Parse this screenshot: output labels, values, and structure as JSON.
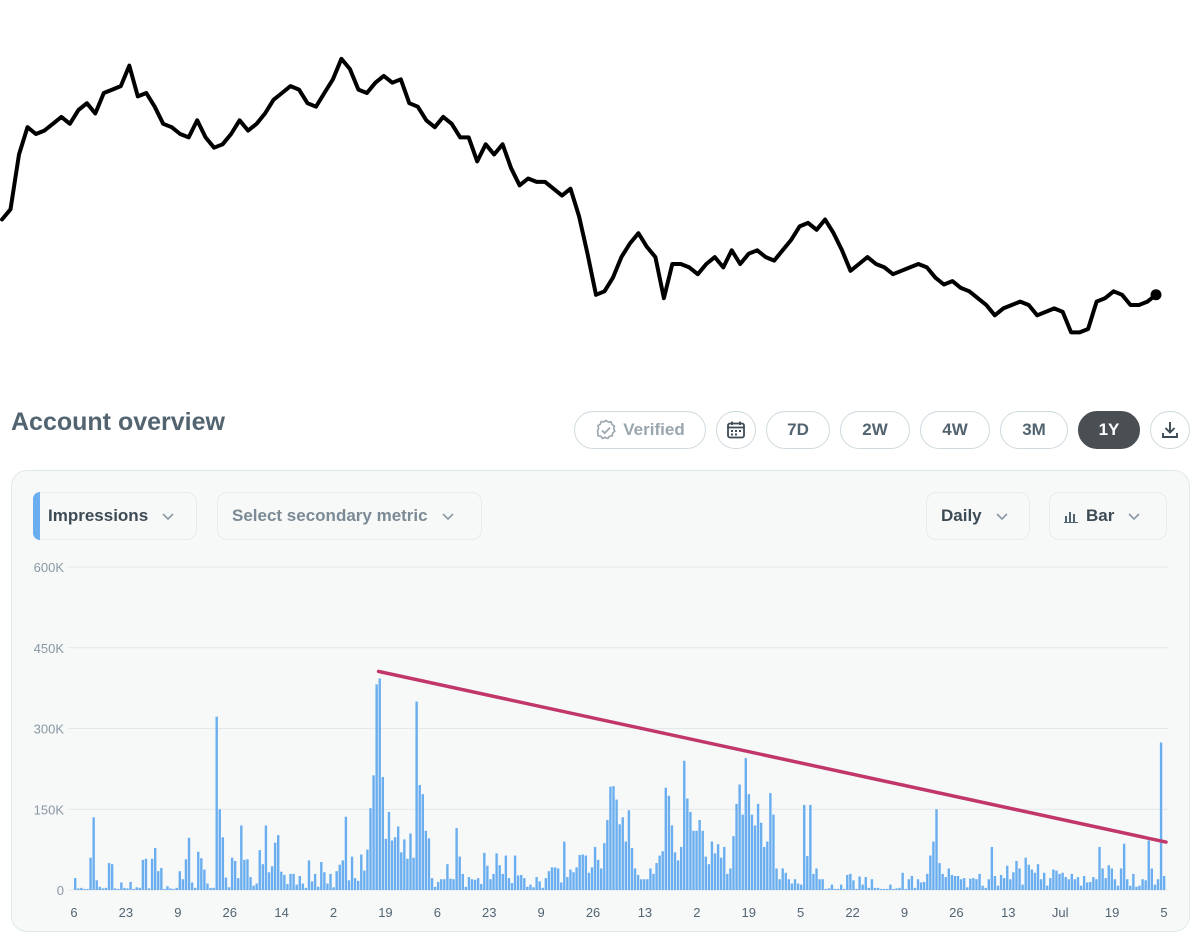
{
  "header": {
    "title": "Account overview"
  },
  "toolbar": {
    "verified_label": "Verified",
    "ranges": [
      "7D",
      "2W",
      "4W",
      "3M",
      "1Y"
    ],
    "active_range": "1Y"
  },
  "controls": {
    "primary_metric": "Impressions",
    "secondary_metric_placeholder": "Select secondary metric",
    "interval": "Daily",
    "chart_type": "Bar"
  },
  "colors": {
    "bar": "#6aaef0",
    "trend": "#c2376a",
    "accent": "#6aaef0",
    "active_pill": "#4a4f54"
  },
  "icons": [
    "verified-check-icon",
    "calendar-icon",
    "download-icon",
    "chevron-down-icon",
    "bar-chart-icon"
  ],
  "chart_data": [
    {
      "type": "line",
      "series": [
        {
          "values": [
            44,
            47,
            63,
            71,
            69,
            70,
            72,
            74,
            72,
            76,
            78,
            75,
            81,
            82,
            83,
            89,
            80,
            81,
            77,
            72,
            71,
            69,
            68,
            73,
            68,
            65,
            66,
            69,
            73,
            70,
            72,
            75,
            79,
            81,
            83,
            82,
            78,
            77,
            81,
            85,
            91,
            88,
            82,
            81,
            84,
            86,
            84,
            85,
            78,
            77,
            73,
            71,
            74,
            72,
            68,
            68,
            61,
            66,
            63,
            66,
            59,
            54,
            56,
            55,
            55,
            53,
            51,
            53,
            45,
            34,
            22,
            23,
            27,
            33,
            37,
            40,
            36,
            33,
            21,
            31,
            31,
            30,
            28,
            31,
            33,
            30,
            35,
            31,
            34,
            35,
            33,
            32,
            35,
            38,
            42,
            43,
            41,
            44,
            40,
            35,
            29,
            31,
            33,
            31,
            30,
            28,
            29,
            30,
            31,
            30,
            27,
            25,
            26,
            24,
            23,
            21,
            19,
            16,
            18,
            19,
            20,
            19,
            16,
            17,
            18,
            17,
            11,
            11,
            12,
            20,
            21,
            23,
            22,
            19,
            19,
            20,
            22
          ]
        }
      ]
    },
    {
      "type": "bar",
      "title": "Impressions",
      "ylim": [
        0,
        600000
      ],
      "y_ticks": [
        "0",
        "150K",
        "300K",
        "450K",
        "600K"
      ],
      "x_tick_labels": [
        "6",
        "23",
        "9",
        "26",
        "14",
        "2",
        "19",
        "6",
        "23",
        "9",
        "26",
        "13",
        "2",
        "19",
        "5",
        "22",
        "9",
        "26",
        "13",
        "Jul",
        "19",
        "5"
      ],
      "values": [
        22000,
        3000,
        4000,
        2000,
        2000,
        60000,
        135000,
        18000,
        6000,
        3000,
        4000,
        50000,
        48000,
        3000,
        2000,
        14000,
        4000,
        3000,
        15000,
        2000,
        5000,
        4000,
        56000,
        58000,
        3000,
        58000,
        78000,
        35000,
        41000,
        2000,
        7000,
        3000,
        2000,
        4000,
        35000,
        20000,
        57000,
        97000,
        14000,
        4000,
        71000,
        59000,
        38000,
        12000,
        4000,
        4000,
        322000,
        150000,
        98000,
        23000,
        5000,
        60000,
        54000,
        22000,
        120000,
        56000,
        57000,
        24000,
        8000,
        12000,
        74000,
        48000,
        120000,
        33000,
        44000,
        88000,
        102000,
        34000,
        28000,
        11000,
        30000,
        30000,
        10000,
        26000,
        12000,
        4000,
        55000,
        16000,
        30000,
        6000,
        52000,
        33000,
        12000,
        30000,
        5000,
        35000,
        47000,
        55000,
        136000,
        18000,
        62000,
        22000,
        17000,
        66000,
        36000,
        75000,
        152000,
        213000,
        382000,
        393000,
        210000,
        95000,
        145000,
        92000,
        98000,
        118000,
        70000,
        94000,
        58000,
        105000,
        60000,
        350000,
        195000,
        178000,
        110000,
        96000,
        22000,
        6000,
        15000,
        20000,
        20000,
        48000,
        21000,
        20000,
        115000,
        62000,
        30000,
        6000,
        24000,
        20000,
        19000,
        22000,
        11000,
        69000,
        45000,
        20000,
        30000,
        68000,
        46000,
        30000,
        64000,
        22000,
        13000,
        64000,
        27000,
        28000,
        22000,
        6000,
        10000,
        5000,
        24000,
        16000,
        4000,
        22000,
        35000,
        42000,
        42000,
        40000,
        14000,
        90000,
        24000,
        38000,
        33000,
        42000,
        65000,
        66000,
        64000,
        32000,
        42000,
        80000,
        56000,
        40000,
        87000,
        130000,
        192000,
        193000,
        168000,
        122000,
        135000,
        90000,
        148000,
        78000,
        40000,
        28000,
        20000,
        20000,
        20000,
        40000,
        30000,
        50000,
        64000,
        72000,
        190000,
        175000,
        120000,
        70000,
        55000,
        80000,
        240000,
        170000,
        145000,
        110000,
        110000,
        130000,
        110000,
        62000,
        48000,
        90000,
        68000,
        85000,
        60000,
        80000,
        30000,
        40000,
        100000,
        160000,
        196000,
        140000,
        245000,
        178000,
        140000,
        120000,
        160000,
        125000,
        80000,
        90000,
        180000,
        140000,
        40000,
        20000,
        40000,
        32000,
        20000,
        12000,
        20000,
        12000,
        10000,
        158000,
        63000,
        158000,
        30000,
        40000,
        20000,
        20000,
        2000,
        3000,
        10000,
        2000,
        2000,
        10000,
        2000,
        28000,
        30000,
        18000,
        2000,
        25000,
        10000,
        24000,
        4000,
        20000,
        4000,
        4000,
        2000,
        2000,
        2000,
        10000,
        2000,
        3000,
        4000,
        32000,
        2000,
        20000,
        26000,
        4000,
        20000,
        14000,
        15000,
        30000,
        64000,
        90000,
        150000,
        50000,
        30000,
        24000,
        40000,
        28000,
        26000,
        26000,
        20000,
        22000,
        5000,
        21000,
        22000,
        20000,
        30000,
        8000,
        4000,
        20000,
        80000,
        26000,
        8000,
        28000,
        22000,
        45000,
        20000,
        33000,
        54000,
        40000,
        10000,
        60000,
        47000,
        38000,
        32000,
        48000,
        20000,
        32000,
        8000,
        22000,
        38000,
        36000,
        30000,
        32000,
        24000,
        20000,
        30000,
        20000,
        24000,
        8000,
        26000,
        14000,
        15000,
        24000,
        20000,
        80000,
        40000,
        22000,
        46000,
        40000,
        20000,
        8000,
        40000,
        86000,
        20000,
        8000,
        30000,
        6000,
        8000,
        20000,
        18000,
        92000,
        40000,
        10000,
        20000,
        274000,
        26000
      ],
      "trendline": {
        "start_value": 406000,
        "end_value": 89000
      }
    }
  ]
}
